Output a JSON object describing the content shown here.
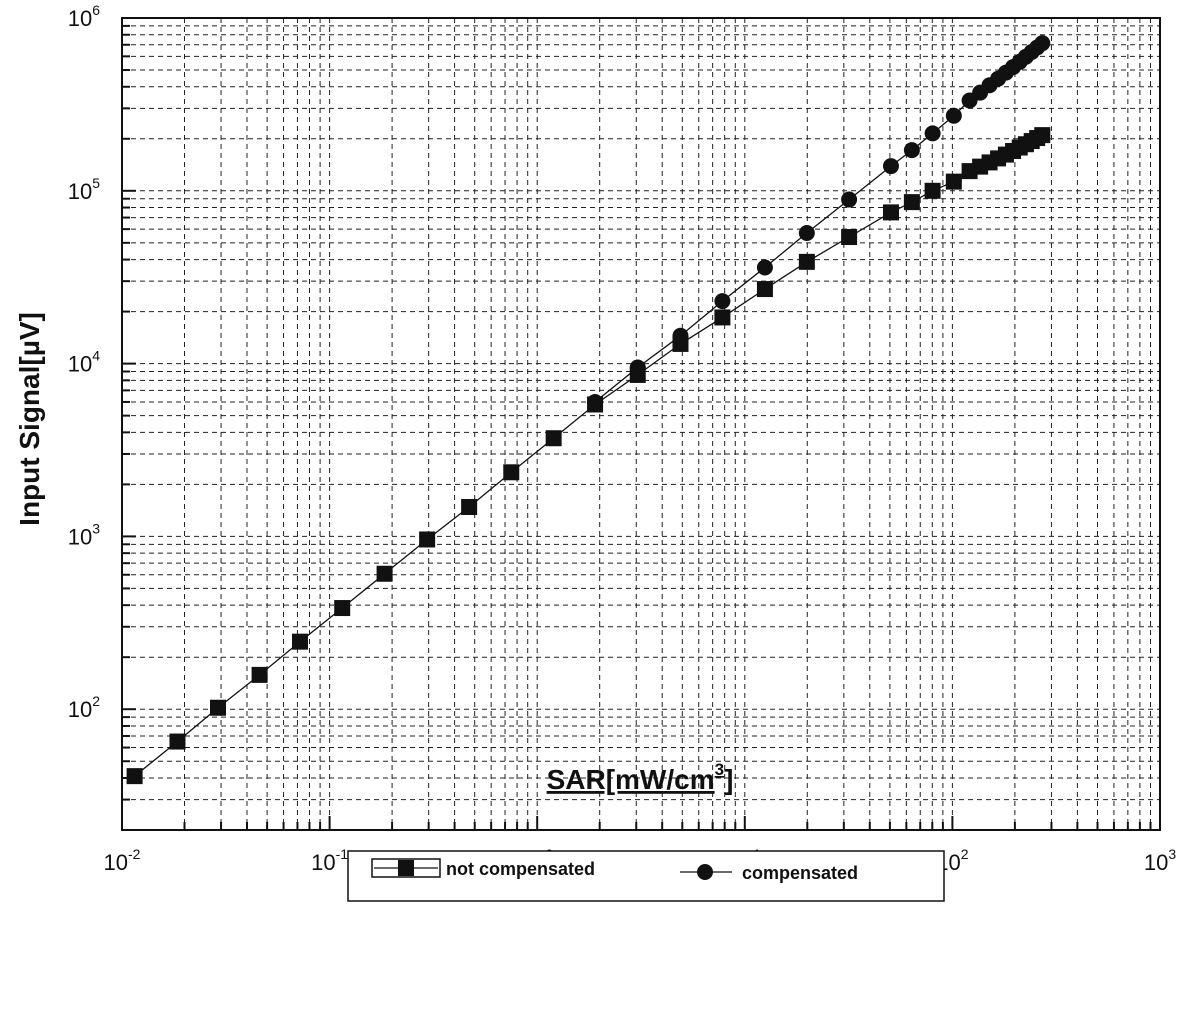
{
  "chart_data": {
    "type": "line",
    "x_scale": "log",
    "y_scale": "log",
    "xlim": [
      0.01,
      1000
    ],
    "ylim": [
      20,
      1000000
    ],
    "grid": true,
    "legend_position": "bottom-center",
    "xlabel": {
      "base": "SAR[mW/cm",
      "sup": "3",
      "close": "]"
    },
    "ylabel": "Input Signal[µV]",
    "x_ticks": [
      {
        "base": "10",
        "exp": "-2",
        "value": 0.01
      },
      {
        "base": "10",
        "exp": "-1",
        "value": 0.1
      },
      {
        "base": "10",
        "exp": "0",
        "value": 1
      },
      {
        "base": "10",
        "exp": "1",
        "value": 10
      },
      {
        "base": "10",
        "exp": "2",
        "value": 100
      },
      {
        "base": "10",
        "exp": "3",
        "value": 1000
      }
    ],
    "y_ticks": [
      {
        "base": "10",
        "exp": "2",
        "value": 100
      },
      {
        "base": "10",
        "exp": "3",
        "value": 1000
      },
      {
        "base": "10",
        "exp": "4",
        "value": 10000
      },
      {
        "base": "10",
        "exp": "5",
        "value": 100000
      },
      {
        "base": "10",
        "exp": "6",
        "value": 1000000
      }
    ],
    "series": [
      {
        "name": "not compensated",
        "marker": "square",
        "color": "#111111",
        "x": [
          0.0115,
          0.0185,
          0.029,
          0.046,
          0.072,
          0.115,
          0.184,
          0.295,
          0.47,
          0.75,
          1.2,
          1.9,
          3.05,
          4.9,
          7.8,
          12.5,
          19.9,
          31.8,
          50.6,
          63.8,
          80.3,
          101.6,
          121,
          136,
          151,
          166,
          181,
          196,
          211,
          226,
          241,
          256,
          271
        ],
        "y": [
          41,
          65,
          102,
          158,
          246,
          385,
          608,
          960,
          1480,
          2350,
          3700,
          5800,
          8600,
          13000,
          18500,
          27000,
          38800,
          54000,
          75000,
          86000,
          100000,
          113000,
          130000,
          138000,
          146000,
          154000,
          162000,
          170000,
          178000,
          186000,
          194000,
          202000,
          210000
        ]
      },
      {
        "name": "compensated",
        "marker": "circle",
        "color": "#111111",
        "x": [
          1.9,
          3.05,
          4.9,
          7.8,
          12.5,
          19.9,
          31.8,
          50.6,
          63.8,
          80.3,
          101.6,
          121,
          136,
          151,
          166,
          181,
          196,
          211,
          226,
          241,
          256,
          271
        ],
        "y": [
          6000,
          9500,
          14500,
          23000,
          36000,
          57000,
          89000,
          139000,
          172000,
          215000,
          272000,
          333000,
          370000,
          408000,
          445000,
          483000,
          520000,
          558000,
          597000,
          636000,
          675000,
          715000
        ]
      }
    ]
  }
}
